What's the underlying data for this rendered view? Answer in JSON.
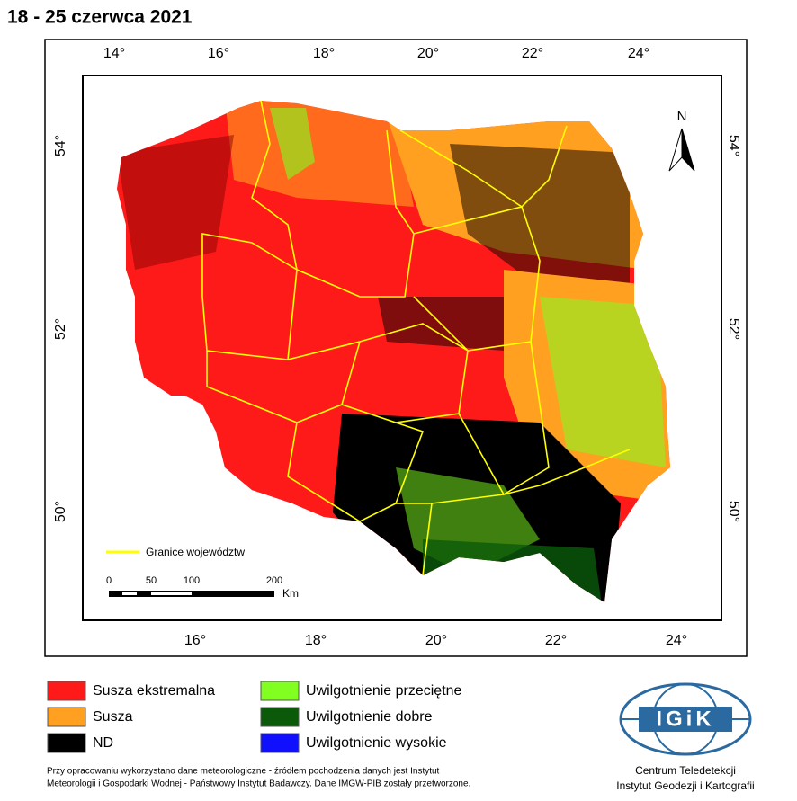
{
  "title": "18 - 25 czerwca 2021",
  "axes": {
    "top": [
      "14°",
      "16°",
      "18°",
      "20°",
      "22°",
      "24°"
    ],
    "bottom": [
      "16°",
      "18°",
      "20°",
      "22°",
      "24°"
    ],
    "left": [
      "54°",
      "52°",
      "50°"
    ],
    "right": [
      "54°",
      "52°",
      "50°"
    ]
  },
  "north_arrow": "N",
  "boundary_legend": "Granice województw",
  "scale_bar": {
    "labels": [
      "0",
      "50",
      "100",
      "200"
    ],
    "unit": "Km"
  },
  "legend": [
    {
      "name": "Susza ekstremalna",
      "color": "#ff1a1a"
    },
    {
      "name": "Susza",
      "color": "#ffa020"
    },
    {
      "name": "ND",
      "color": "#000000"
    },
    {
      "name": "Uwilgotnienie przeciętne",
      "color": "#80ff20"
    },
    {
      "name": "Uwilgotnienie dobre",
      "color": "#0a5a0a"
    },
    {
      "name": "Uwilgotnienie wysokie",
      "color": "#1010ff"
    }
  ],
  "logo": {
    "text": "IGiK",
    "line1": "Centrum Teledetekcji",
    "line2": "Instytut Geodezji i Kartografii"
  },
  "footnote": [
    "Przy opracowaniu wykorzystano dane meteorologiczne - źródłem pochodzenia danych jest Instytut",
    "Meteorologii i Gospodarki Wodnej - Państwowy Instytut Badawczy. Dane IMGW-PIB zostały przetworzone."
  ]
}
